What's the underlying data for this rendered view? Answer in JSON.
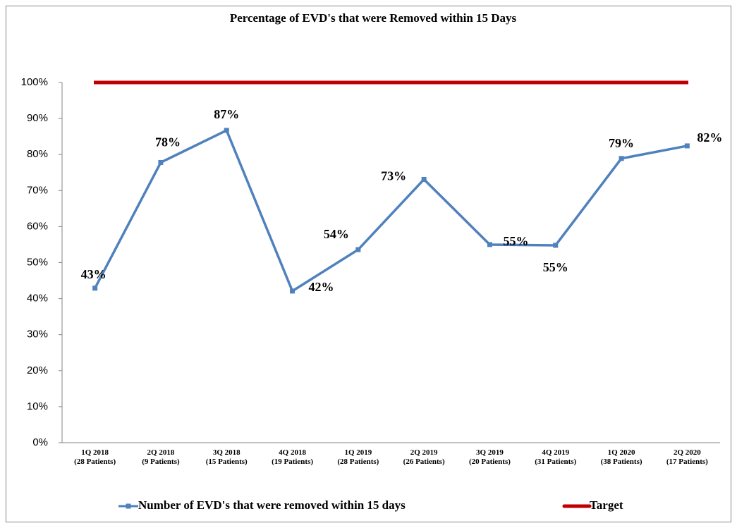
{
  "chart_data": {
    "type": "line",
    "title": "Percentage of EVD's that were Removed within 15 Days",
    "categories": [
      [
        "1Q 2018",
        "(28 Patients)"
      ],
      [
        "2Q 2018",
        "(9 Patients)"
      ],
      [
        "3Q 2018",
        "(15 Patients)"
      ],
      [
        "4Q 2018",
        "(19 Patients)"
      ],
      [
        "1Q 2019",
        "(28 Patients)"
      ],
      [
        "2Q 2019",
        "(26 Patients)"
      ],
      [
        "3Q 2019",
        "(20 Patients)"
      ],
      [
        "4Q 2019",
        "(31 Patients)"
      ],
      [
        "1Q 2020",
        "(38 Patients)"
      ],
      [
        "2Q 2020",
        "(17 Patients)"
      ]
    ],
    "series": [
      {
        "name": "Number of EVD's that were removed within 15 days",
        "color": "#4f81bd",
        "values": [
          42.9,
          77.8,
          86.7,
          42.1,
          53.6,
          73.1,
          55,
          54.8,
          78.9,
          82.4
        ],
        "value_labels": [
          "43%",
          "78%",
          "87%",
          "42%",
          "54%",
          "73%",
          "55%",
          "55%",
          "79%",
          "82%"
        ]
      },
      {
        "name": "Target",
        "color": "#c00000",
        "values": [
          100,
          100,
          100,
          100,
          100,
          100,
          100,
          100,
          100,
          100
        ]
      }
    ],
    "ylim": [
      0,
      100
    ],
    "yticks": [
      {
        "value": 0,
        "label": "0%"
      },
      {
        "value": 10,
        "label": "10%"
      },
      {
        "value": 20,
        "label": "20%"
      },
      {
        "value": 30,
        "label": "30%"
      },
      {
        "value": 40,
        "label": "40%"
      },
      {
        "value": 50,
        "label": "50%"
      },
      {
        "value": 60,
        "label": "60%"
      },
      {
        "value": 70,
        "label": "70%"
      },
      {
        "value": 80,
        "label": "80%"
      },
      {
        "value": 90,
        "label": "90%"
      },
      {
        "value": 100,
        "label": "100%"
      }
    ],
    "grid": false,
    "legend": "bottom"
  }
}
